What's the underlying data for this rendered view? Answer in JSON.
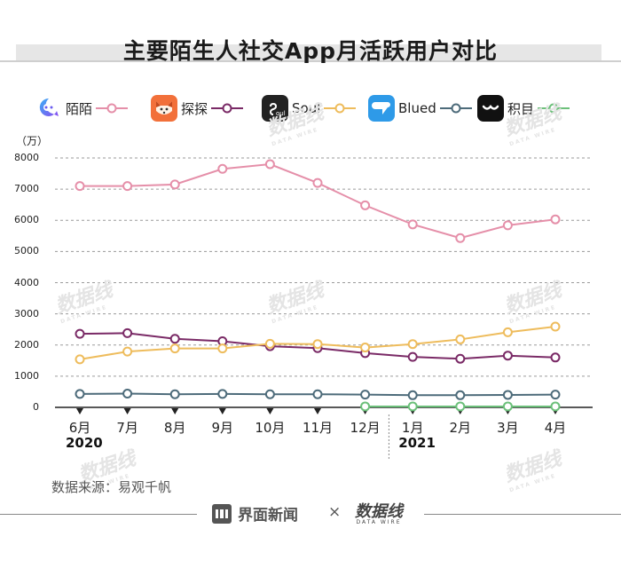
{
  "title": "主要陌生人社交App月活跃用户对比",
  "unit_label": "（万）",
  "source": "数据来源：易观千帆",
  "footer": {
    "brand": "界面新闻",
    "times": "×",
    "partner": "数据线",
    "partner_sub": "DATA WIRE"
  },
  "watermark": {
    "text": "数据线",
    "sub": "DATA WIRE"
  },
  "colors": {
    "momo": "#e58fa9",
    "tantan": "#7a2a66",
    "soul": "#eebc5c",
    "blued": "#4d6b7a",
    "jimu": "#6cc07a",
    "grid": "#9a9a9a",
    "axis": "#222222"
  },
  "icons": {
    "momo": "momo-app-icon",
    "tantan": "tantan-fox-icon",
    "soul": "soul-app-icon",
    "blued": "blued-app-icon",
    "jimu": "jimu-app-icon"
  },
  "chart_data": {
    "type": "line",
    "title": "主要陌生人社交App月活跃用户对比",
    "xlabel": "",
    "ylabel": "（万）",
    "ylim": [
      0,
      8000
    ],
    "yticks": [
      "0",
      "1000",
      "2000",
      "3000",
      "4000",
      "5000",
      "6000",
      "7000",
      "8000"
    ],
    "categories": [
      "6月",
      "7月",
      "8月",
      "9月",
      "10月",
      "11月",
      "12月",
      "1月",
      "2月",
      "3月",
      "4月"
    ],
    "year_labels": [
      {
        "label": "2020",
        "start_index": 0
      },
      {
        "label": "2021",
        "start_index": 7
      }
    ],
    "grid": true,
    "legend_position": "top",
    "series": [
      {
        "key": "momo",
        "name": "陌陌",
        "values": [
          7100,
          7100,
          7150,
          7650,
          7800,
          7200,
          6480,
          5870,
          5430,
          5840,
          6030
        ]
      },
      {
        "key": "tantan",
        "name": "探探",
        "values": [
          2360,
          2380,
          2200,
          2120,
          1960,
          1900,
          1740,
          1620,
          1560,
          1660,
          1600
        ]
      },
      {
        "key": "soul",
        "name": "Soul",
        "values": [
          1540,
          1790,
          1890,
          1890,
          2040,
          2030,
          1920,
          2030,
          2180,
          2410,
          2590
        ]
      },
      {
        "key": "blued",
        "name": "Blued",
        "values": [
          430,
          440,
          420,
          430,
          420,
          420,
          410,
          390,
          390,
          400,
          410
        ]
      },
      {
        "key": "jimu",
        "name": "积目",
        "values": [
          null,
          null,
          null,
          null,
          null,
          null,
          30,
          30,
          30,
          30,
          30
        ]
      }
    ]
  }
}
